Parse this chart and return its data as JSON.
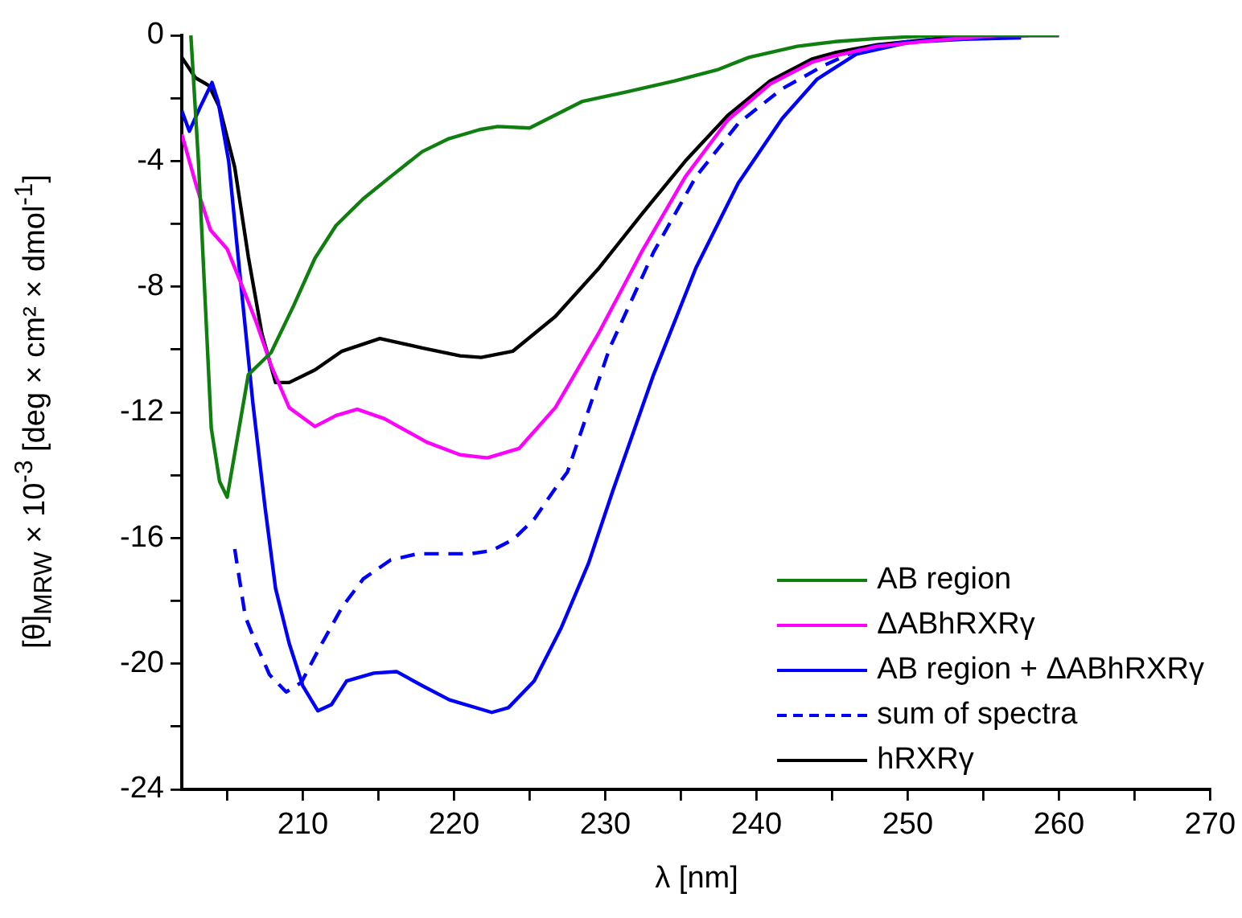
{
  "chart_data": {
    "type": "line",
    "xlabel": "λ [nm]",
    "ylabel": "[θ]$_{MRW}$ × 10$^{-3}$ [deg × cm² × dmol$^{-1}$]",
    "xlim": [
      202,
      270
    ],
    "xticks": [
      {
        "value": 205,
        "label": null
      },
      210,
      {
        "value": 215,
        "label": null
      },
      220,
      {
        "value": 225,
        "label": null
      },
      230,
      {
        "value": 235,
        "label": null
      },
      240,
      {
        "value": 245,
        "label": null
      },
      250,
      {
        "value": 255,
        "label": null
      },
      260,
      {
        "value": 265,
        "label": null
      },
      270
    ],
    "ylim": [
      -24,
      0
    ],
    "yticks": [
      -24,
      {
        "value": -22,
        "label": null
      },
      -20,
      {
        "value": -18,
        "label": null
      },
      -16,
      {
        "value": -14,
        "label": null
      },
      -12,
      {
        "value": -10,
        "label": null
      },
      -8,
      {
        "value": -6,
        "label": null
      },
      -4,
      {
        "value": -2,
        "label": null
      },
      0
    ],
    "grid": false,
    "legend": "bottom right",
    "marker": "none",
    "series": [
      {
        "name": "AB region",
        "color": "#0f7f0f",
        "line_style": "solid",
        "x": [
          202.6,
          203.1,
          203.95,
          204.5,
          205.0,
          206.4,
          207.9,
          209.4,
          210.8,
          212.2,
          214.0,
          215.8,
          217.9,
          219.6,
          221.7,
          222.9,
          225.0,
          228.5,
          231.4,
          234.6,
          237.4,
          239.5,
          242.7,
          245.2,
          248,
          252,
          256,
          260
        ],
        "values": [
          0,
          -4,
          -12.5,
          -14.2,
          -14.7,
          -10.8,
          -10.1,
          -8.6,
          -7.1,
          -6.05,
          -5.2,
          -4.5,
          -3.7,
          -3.3,
          -3.0,
          -2.9,
          -2.95,
          -2.1,
          -1.8,
          -1.45,
          -1.1,
          -0.7,
          -0.35,
          -0.2,
          -0.1,
          0,
          0,
          0
        ]
      },
      {
        "name": "ΔABhRXRγ",
        "color": "#ff00ff",
        "line_style": "solid",
        "x": [
          202,
          203,
          203.9,
          205,
          205.8,
          206.9,
          207.9,
          209.1,
          210.8,
          212.2,
          213.6,
          215.4,
          218.2,
          220.4,
          222.2,
          224.3,
          226.7,
          229.6,
          232.4,
          235.3,
          238.1,
          240.9,
          243.7,
          245.2,
          248,
          252,
          256,
          260
        ],
        "values": [
          -3.15,
          -4.85,
          -6.2,
          -6.8,
          -7.75,
          -9.1,
          -10.5,
          -11.85,
          -12.45,
          -12.1,
          -11.9,
          -12.2,
          -12.95,
          -13.35,
          -13.45,
          -13.15,
          -11.85,
          -9.45,
          -6.9,
          -4.5,
          -2.7,
          -1.55,
          -0.85,
          -0.65,
          -0.35,
          -0.15,
          0,
          0
        ]
      },
      {
        "name": "AB region + ΔABhRXRγ",
        "color": "#0000ff",
        "line_style": "solid",
        "x": [
          202,
          202.5,
          203.2,
          204,
          204.4,
          205.1,
          205.8,
          206.7,
          207.5,
          208.2,
          209.1,
          210,
          211,
          211.9,
          212.9,
          214.7,
          216.2,
          217.9,
          219.7,
          222.5,
          223.6,
          225.3,
          227.1,
          228.9,
          230.5,
          233.2,
          236,
          238.8,
          241.7,
          244,
          246.6,
          250.1,
          253.7,
          257.5
        ],
        "values": [
          -2.4,
          -3.05,
          -2.3,
          -1.5,
          -2.1,
          -4,
          -7.4,
          -11.7,
          -15,
          -17.6,
          -19.35,
          -20.7,
          -21.5,
          -21.3,
          -20.55,
          -20.3,
          -20.25,
          -20.7,
          -21.15,
          -21.55,
          -21.4,
          -20.55,
          -18.85,
          -16.8,
          -14.5,
          -10.8,
          -7.4,
          -4.7,
          -2.65,
          -1.4,
          -0.6,
          -0.22,
          -0.12,
          -0.08
        ]
      },
      {
        "name": "sum of spectra",
        "color": "#0000ff",
        "line_style": "dashed",
        "x": [
          205.5,
          206.2,
          206.9,
          207.8,
          208.9,
          209.9,
          211.1,
          212.6,
          214,
          215.8,
          217.6,
          221.1,
          222.5,
          223.9,
          225.3,
          226.8,
          227.5,
          230.3,
          233.2,
          236,
          238.8,
          241.7,
          244.5,
          247,
          250,
          253,
          258
        ],
        "values": [
          -16.35,
          -18.5,
          -19.35,
          -20.35,
          -20.9,
          -20.6,
          -19.5,
          -18.2,
          -17.3,
          -16.7,
          -16.5,
          -16.5,
          -16.4,
          -16.05,
          -15.4,
          -14.35,
          -13.9,
          -9.95,
          -6.9,
          -4.5,
          -2.8,
          -1.7,
          -0.95,
          -0.4,
          -0.2,
          -0.1,
          0
        ]
      },
      {
        "name": "hRXRγ",
        "color": "#000000",
        "line_style": "solid",
        "x": [
          202,
          202.9,
          203.8,
          204.5,
          205.5,
          206.4,
          207.3,
          208.2,
          209.1,
          210.8,
          212.6,
          215.1,
          217.9,
          220.4,
          221.8,
          223.9,
          226.7,
          229.6,
          232.4,
          235.3,
          238.1,
          240.9,
          243.7,
          245.2,
          248,
          252,
          255,
          260
        ],
        "values": [
          -0.7,
          -1.35,
          -1.6,
          -2.3,
          -4.2,
          -7.05,
          -9.5,
          -11.05,
          -11.05,
          -10.65,
          -10.05,
          -9.65,
          -9.95,
          -10.2,
          -10.25,
          -10.05,
          -8.95,
          -7.4,
          -5.7,
          -4,
          -2.55,
          -1.45,
          -0.75,
          -0.55,
          -0.3,
          -0.1,
          0,
          0
        ]
      }
    ]
  }
}
